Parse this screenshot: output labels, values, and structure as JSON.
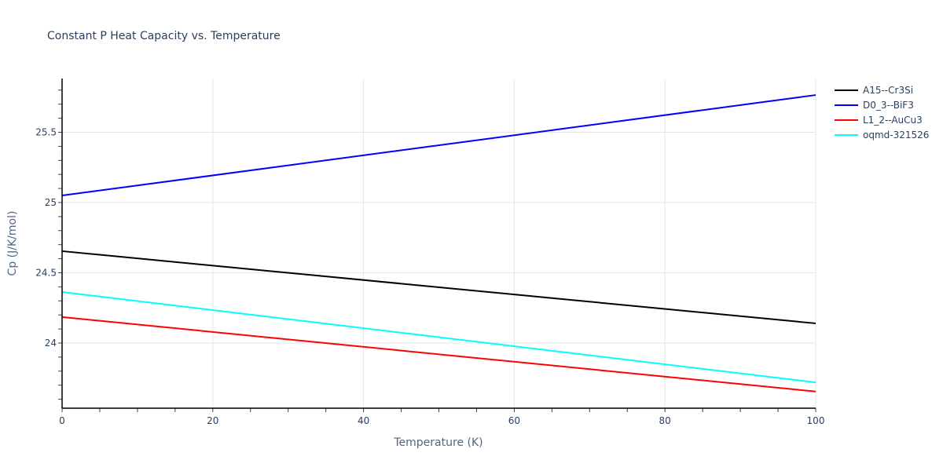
{
  "chart_data": {
    "type": "line",
    "title": "Constant P Heat Capacity vs. Temperature",
    "xlabel": "Temperature (K)",
    "ylabel": "Cp (J/K/mol)",
    "xlim": [
      0,
      100
    ],
    "ylim": [
      23.53,
      25.88
    ],
    "x_ticks": [
      0,
      20,
      40,
      60,
      80,
      100
    ],
    "y_ticks": [
      24,
      24.5,
      25,
      25.5
    ],
    "y_tick_labels": [
      "24",
      "24.5",
      "25",
      "25.5"
    ],
    "grid": true,
    "legend_position": "right",
    "x": [
      0,
      100
    ],
    "series": [
      {
        "name": "A15--Cr3Si",
        "color": "#000000",
        "values": [
          24.654,
          24.14
        ]
      },
      {
        "name": "D0_3--BiF3",
        "color": "#0000ff",
        "values": [
          25.05,
          25.765
        ]
      },
      {
        "name": "L1_2--AuCu3",
        "color": "#ff0000",
        "values": [
          24.185,
          23.655
        ]
      },
      {
        "name": "oqmd-321526",
        "color": "#00ffff",
        "values": [
          24.363,
          23.72
        ]
      }
    ]
  }
}
